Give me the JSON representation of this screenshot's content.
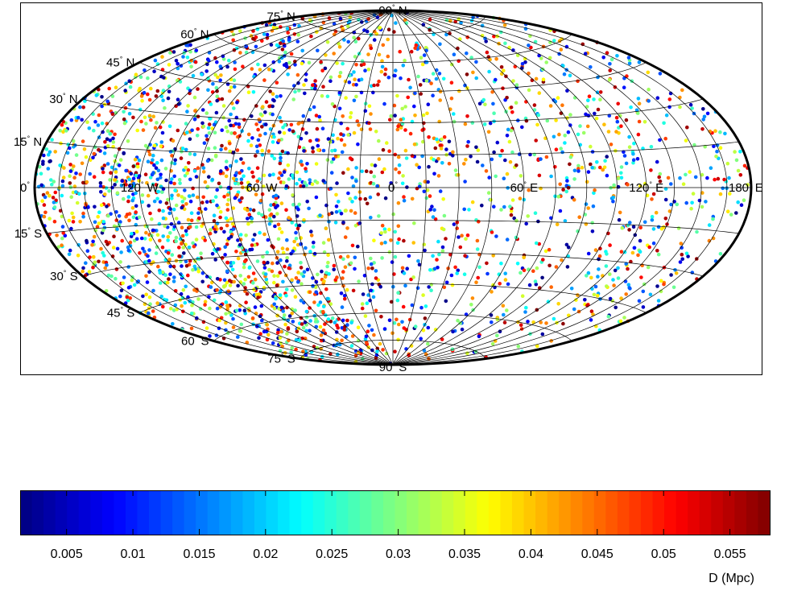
{
  "map": {
    "projection": "hammer-aitoff",
    "longitude_range": [
      -180,
      180
    ],
    "latitude_range": [
      -90,
      90
    ],
    "graticule_step_deg": {
      "lon": 15,
      "lat": 15
    },
    "grid": true,
    "latitude_labels": [
      {
        "value": "90",
        "hemi": "N",
        "lat": 90
      },
      {
        "value": "75",
        "hemi": "N",
        "lat": 75
      },
      {
        "value": "60",
        "hemi": "N",
        "lat": 60
      },
      {
        "value": "45",
        "hemi": "N",
        "lat": 45
      },
      {
        "value": "30",
        "hemi": "N",
        "lat": 30
      },
      {
        "value": "15",
        "hemi": "N",
        "lat": 15
      },
      {
        "value": "0",
        "hemi": "",
        "lat": 0
      },
      {
        "value": "15",
        "hemi": "S",
        "lat": -15
      },
      {
        "value": "30",
        "hemi": "S",
        "lat": -30
      },
      {
        "value": "45",
        "hemi": "S",
        "lat": -45
      },
      {
        "value": "60",
        "hemi": "S",
        "lat": -60
      },
      {
        "value": "75",
        "hemi": "S",
        "lat": -75
      },
      {
        "value": "90",
        "hemi": "S",
        "lat": -90
      }
    ],
    "longitude_labels": [
      {
        "value": "120",
        "hemi": "W",
        "lon": -120
      },
      {
        "value": "60",
        "hemi": "W",
        "lon": -60
      },
      {
        "value": "0",
        "hemi": "",
        "lon": 0
      },
      {
        "value": "60",
        "hemi": "E",
        "lon": 60
      },
      {
        "value": "120",
        "hemi": "E",
        "lon": 120
      },
      {
        "value": "180",
        "hemi": "E",
        "lon": 180
      }
    ],
    "point_count_approx": 3000
  },
  "chart_data": {
    "type": "scatter",
    "colorbar": {
      "colormap": "jet",
      "range": [
        0.0015,
        0.058
      ],
      "ticks": [
        "0.005",
        "0.01",
        "0.015",
        "0.02",
        "0.025",
        "0.03",
        "0.035",
        "0.04",
        "0.045",
        "0.05",
        "0.055"
      ],
      "tick_values": [
        0.005,
        0.01,
        0.015,
        0.02,
        0.025,
        0.03,
        0.035,
        0.04,
        0.045,
        0.05,
        0.055
      ],
      "label": "D (Mpc)"
    }
  }
}
